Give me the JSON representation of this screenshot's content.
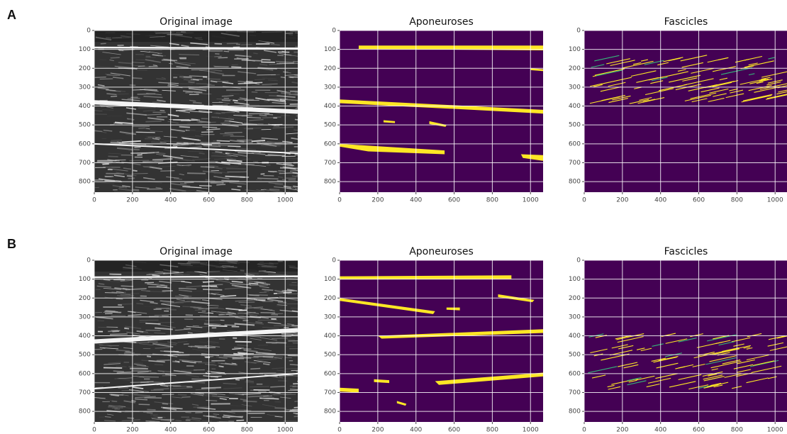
{
  "figure": {
    "rows": [
      {
        "label": "A",
        "panels": [
          {
            "title": "Original image"
          },
          {
            "title": "Aponeuroses"
          },
          {
            "title": "Fascicles"
          }
        ]
      },
      {
        "label": "B",
        "panels": [
          {
            "title": "Original image"
          },
          {
            "title": "Aponeuroses"
          },
          {
            "title": "Fascicles"
          }
        ]
      }
    ],
    "xlim": [
      0,
      1066
    ],
    "ylim": [
      856,
      0
    ],
    "xticks": [
      0,
      200,
      400,
      600,
      800,
      1000
    ],
    "yticks": [
      0,
      100,
      200,
      300,
      400,
      500,
      600,
      700,
      800
    ]
  }
}
